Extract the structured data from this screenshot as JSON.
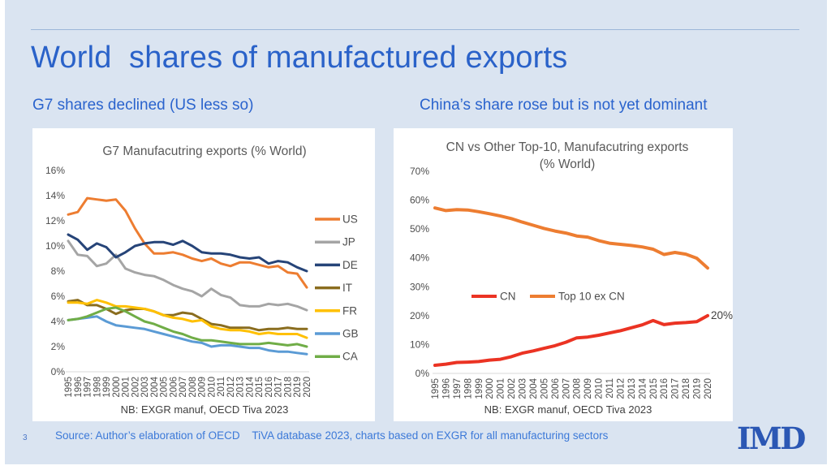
{
  "slide": {
    "title": "World  shares of manufactured exports",
    "subtitle_left": "G7 shares declined (US less so)",
    "subtitle_right": "China’s share rose but is not yet dominant",
    "page_number": "3",
    "source_text": "Source: Author’s elaboration of OECD    TiVA database 2023, charts based on EXGR for all manufacturing sectors",
    "logo_text": "IMD"
  },
  "colors": {
    "slide_background": "#dae4f1",
    "title_blue": "#2a62c9",
    "subtitle_blue": "#2a63cd",
    "source_blue": "#3c79d8",
    "logo_blue": "#2b57b4",
    "chart_text_gray": "#595959",
    "axis_line_gray": "#d9d9d9"
  },
  "chart_data": [
    {
      "type": "line",
      "title": "G7 Manufacutring exports (% World)",
      "note": "NB: EXGR manuf, OECD Tiva 2023",
      "xlabel": "",
      "ylabel": "",
      "grid": false,
      "legend_position": "right-column",
      "ylim": [
        0,
        16
      ],
      "ytick_step": 2,
      "x": [
        "1995",
        "1996",
        "1997",
        "1998",
        "1999",
        "2000",
        "2001",
        "2002",
        "2003",
        "2004",
        "2005",
        "2006",
        "2007",
        "2008",
        "2009",
        "2010",
        "2011",
        "2012",
        "2013",
        "2014",
        "2015",
        "2016",
        "2017",
        "2018",
        "2019",
        "2020"
      ],
      "series": [
        {
          "name": "US",
          "color": "#ED7D31",
          "values": [
            12.5,
            12.7,
            13.8,
            13.7,
            13.6,
            13.7,
            12.8,
            11.4,
            10.2,
            9.4,
            9.4,
            9.5,
            9.3,
            9.0,
            8.8,
            9.0,
            8.6,
            8.4,
            8.7,
            8.7,
            8.5,
            8.3,
            8.4,
            7.9,
            7.8,
            6.7
          ]
        },
        {
          "name": "JP",
          "color": "#A5A5A5",
          "values": [
            10.4,
            9.3,
            9.2,
            8.4,
            8.6,
            9.3,
            8.2,
            7.9,
            7.7,
            7.6,
            7.3,
            6.9,
            6.6,
            6.4,
            6.0,
            6.6,
            6.1,
            5.9,
            5.3,
            5.2,
            5.2,
            5.4,
            5.3,
            5.4,
            5.2,
            4.9
          ]
        },
        {
          "name": "DE",
          "color": "#264478",
          "values": [
            10.9,
            10.5,
            9.7,
            10.2,
            9.9,
            9.1,
            9.5,
            10.0,
            10.2,
            10.3,
            10.3,
            10.1,
            10.4,
            10.0,
            9.5,
            9.4,
            9.4,
            9.3,
            9.1,
            9.0,
            9.1,
            8.6,
            8.8,
            8.7,
            8.3,
            8.0
          ]
        },
        {
          "name": "IT",
          "color": "#8A6D1F",
          "values": [
            5.6,
            5.7,
            5.3,
            5.3,
            5.0,
            4.6,
            4.9,
            5.0,
            5.0,
            4.8,
            4.5,
            4.5,
            4.7,
            4.6,
            4.2,
            3.8,
            3.7,
            3.5,
            3.5,
            3.5,
            3.3,
            3.4,
            3.4,
            3.5,
            3.4,
            3.4
          ]
        },
        {
          "name": "FR",
          "color": "#FFC000",
          "values": [
            5.5,
            5.5,
            5.4,
            5.7,
            5.5,
            5.2,
            5.2,
            5.1,
            5.0,
            4.8,
            4.5,
            4.3,
            4.2,
            4.0,
            4.1,
            3.6,
            3.4,
            3.3,
            3.3,
            3.2,
            3.0,
            3.1,
            3.0,
            3.0,
            3.0,
            2.7
          ]
        },
        {
          "name": "GB",
          "color": "#5B9BD5",
          "values": [
            4.1,
            4.2,
            4.3,
            4.4,
            4.0,
            3.7,
            3.6,
            3.5,
            3.4,
            3.2,
            3.0,
            2.8,
            2.6,
            2.4,
            2.3,
            2.0,
            2.1,
            2.1,
            2.0,
            1.9,
            1.9,
            1.7,
            1.6,
            1.6,
            1.5,
            1.4
          ]
        },
        {
          "name": "CA",
          "color": "#70AD47",
          "values": [
            4.1,
            4.2,
            4.4,
            4.7,
            5.0,
            5.1,
            4.8,
            4.4,
            4.0,
            3.8,
            3.5,
            3.2,
            3.0,
            2.7,
            2.5,
            2.5,
            2.4,
            2.3,
            2.2,
            2.2,
            2.2,
            2.3,
            2.2,
            2.1,
            2.2,
            2.0
          ]
        }
      ]
    },
    {
      "type": "line",
      "title": "CN vs Other Top-10, Manufacutring exports",
      "title_line2": "(% World)",
      "note": "NB: EXGR manuf, OECD Tiva 2023",
      "xlabel": "",
      "ylabel": "",
      "grid": false,
      "legend_position": "inside-row",
      "ylim": [
        0,
        70
      ],
      "ytick_step": 10,
      "end_label": {
        "series": "CN",
        "text": "20%"
      },
      "x": [
        "1995",
        "1996",
        "1997",
        "1998",
        "1999",
        "2000",
        "2001",
        "2002",
        "2003",
        "2004",
        "2005",
        "2006",
        "2007",
        "2008",
        "2009",
        "2010",
        "2011",
        "2012",
        "2013",
        "2014",
        "2015",
        "2016",
        "2017",
        "2018",
        "2019",
        "2020"
      ],
      "series": [
        {
          "name": "CN",
          "color": "#EB3323",
          "values": [
            2.8,
            3.2,
            3.8,
            3.9,
            4.1,
            4.6,
            4.9,
            5.8,
            7.0,
            7.8,
            8.7,
            9.6,
            10.8,
            12.3,
            12.6,
            13.2,
            14.0,
            14.8,
            15.8,
            16.8,
            18.3,
            16.9,
            17.4,
            17.6,
            17.9,
            20.0
          ]
        },
        {
          "name": "Top 10 ex CN",
          "color": "#ED7D31",
          "values": [
            57.3,
            56.4,
            56.7,
            56.6,
            56.0,
            55.3,
            54.5,
            53.6,
            52.4,
            51.3,
            50.2,
            49.3,
            48.6,
            47.6,
            47.2,
            46.0,
            45.1,
            44.7,
            44.3,
            43.8,
            43.0,
            41.2,
            41.9,
            41.3,
            39.9,
            36.5
          ]
        }
      ]
    }
  ]
}
